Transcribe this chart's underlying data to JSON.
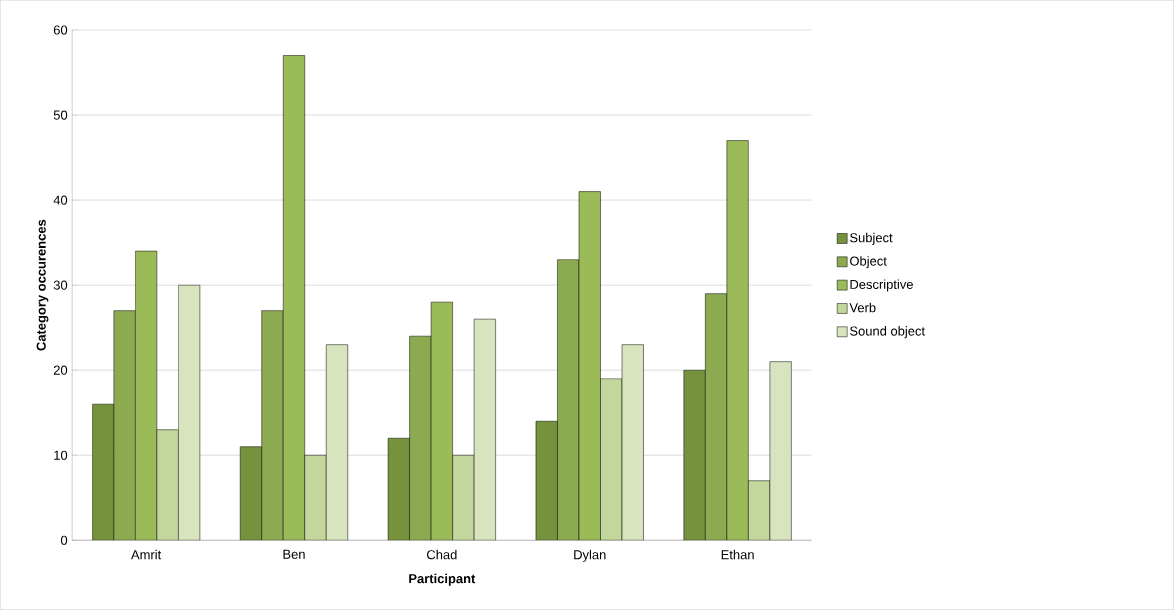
{
  "chart_data": {
    "type": "bar",
    "xlabel": "Participant",
    "ylabel": "Category occurences",
    "categories": [
      "Amrit",
      "Ben",
      "Chad",
      "Dylan",
      "Ethan"
    ],
    "series": [
      {
        "name": "Subject",
        "color": "#76923c",
        "values": [
          16,
          11,
          12,
          14,
          20
        ]
      },
      {
        "name": "Object",
        "color": "#8cab50",
        "values": [
          27,
          27,
          24,
          33,
          29
        ]
      },
      {
        "name": "Descriptive",
        "color": "#9bbb59",
        "values": [
          34,
          57,
          28,
          41,
          47
        ]
      },
      {
        "name": "Verb",
        "color": "#c3d69b",
        "values": [
          13,
          10,
          10,
          19,
          7
        ]
      },
      {
        "name": "Sound object",
        "color": "#d7e4bd",
        "values": [
          30,
          23,
          26,
          23,
          21
        ]
      }
    ],
    "ylim": [
      0,
      60
    ],
    "yticks": [
      0,
      10,
      20,
      30,
      40,
      50,
      60
    ],
    "grid": "y",
    "legend": "right"
  }
}
